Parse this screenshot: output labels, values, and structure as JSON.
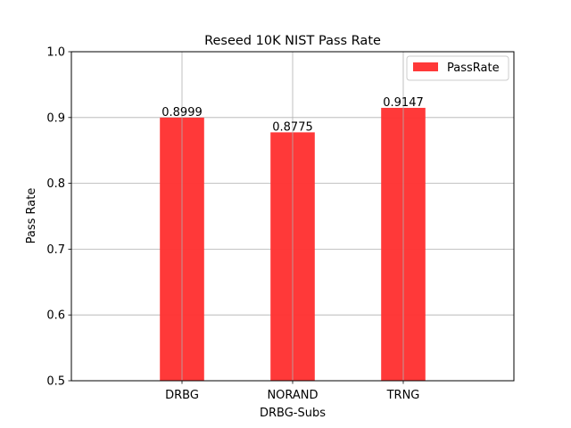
{
  "chart_data": {
    "type": "bar",
    "title": "Reseed 10K NIST Pass Rate",
    "xlabel": "DRBG-Subs",
    "ylabel": "Pass Rate",
    "categories": [
      "DRBG",
      "NORAND",
      "TRNG"
    ],
    "series": [
      {
        "name": "PassRate",
        "values": [
          0.8999,
          0.8775,
          0.9147
        ],
        "color": "#ff3333"
      }
    ],
    "data_labels": [
      "0.8999",
      "0.8775",
      "0.9147"
    ],
    "ylim": [
      0.5,
      1.0
    ],
    "yticks": [
      "0.5",
      "0.6",
      "0.7",
      "0.8",
      "0.9",
      "1.0"
    ],
    "ytick_values": [
      0.5,
      0.6,
      0.7,
      0.8,
      0.9,
      1.0
    ],
    "xlim": [
      -1,
      3
    ],
    "grid": true,
    "legend_position": "top-right"
  }
}
